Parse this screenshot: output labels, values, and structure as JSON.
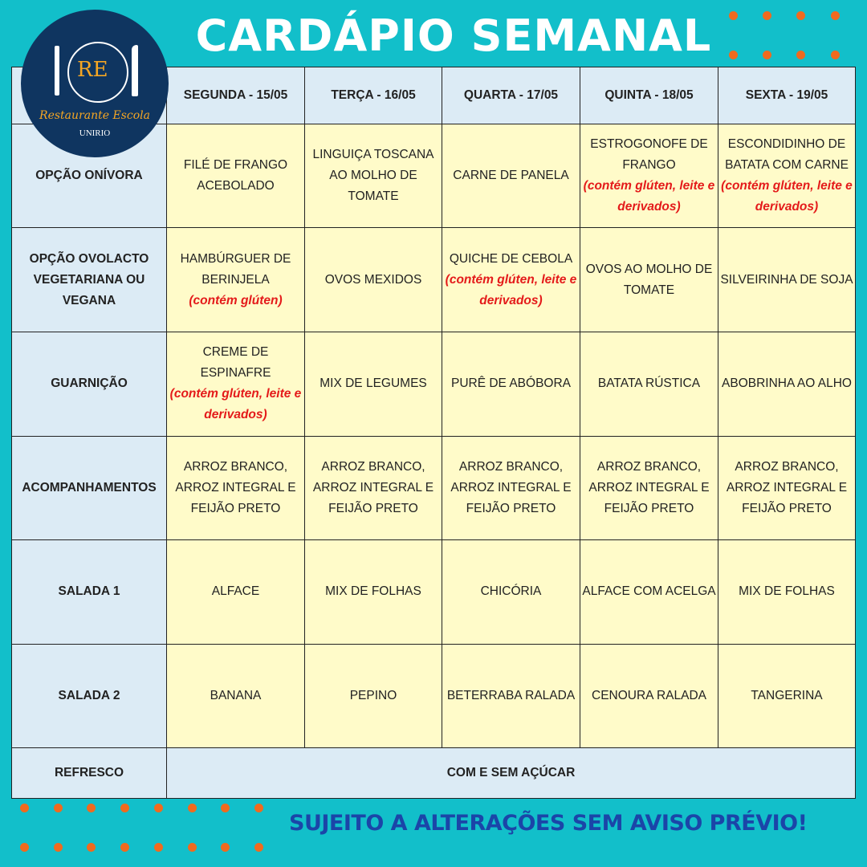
{
  "title": "CARDÁPIO SEMANAL",
  "logo": {
    "monogram": "RE",
    "name": "Restaurante Escola",
    "institution": "UNIRIO"
  },
  "colors": {
    "background": "#12bfca",
    "header_cell": "#dcebf5",
    "menu_cell": "#fffbc9",
    "dots": "#f06a1e",
    "allergen_note": "#e41a1a",
    "footer_text": "#1b45a8",
    "logo_bg": "#0f3560"
  },
  "days": [
    "SEGUNDA - 15/05",
    "TERÇA - 16/05",
    "QUARTA - 17/05",
    "QUINTA - 18/05",
    "SEXTA - 19/05"
  ],
  "rows": [
    {
      "label": "OPÇÃO ONÍVORA",
      "cells": [
        {
          "text": "FILÉ DE FRANGO ACEBOLADO",
          "note": ""
        },
        {
          "text": "LINGUIÇA TOSCANA AO MOLHO DE TOMATE",
          "note": ""
        },
        {
          "text": "CARNE DE PANELA",
          "note": ""
        },
        {
          "text": "ESTROGONOFE DE FRANGO",
          "note": "(contém glúten, leite e derivados)"
        },
        {
          "text": "ESCONDIDINHO DE BATATA COM CARNE",
          "note": "(contém glúten, leite e derivados)"
        }
      ]
    },
    {
      "label": "OPÇÃO OVOLACTO VEGETARIANA OU VEGANA",
      "cells": [
        {
          "text": "HAMBÚRGUER DE BERINJELA",
          "note": "(contém glúten)"
        },
        {
          "text": "OVOS MEXIDOS",
          "note": ""
        },
        {
          "text": "QUICHE DE CEBOLA",
          "note": "(contém glúten, leite e derivados)"
        },
        {
          "text": "OVOS AO MOLHO DE TOMATE",
          "note": ""
        },
        {
          "text": "SILVEIRINHA DE SOJA",
          "note": ""
        }
      ]
    },
    {
      "label": "GUARNIÇÃO",
      "cells": [
        {
          "text": "CREME DE ESPINAFRE",
          "note": "(contém glúten, leite e derivados)"
        },
        {
          "text": "MIX DE LEGUMES",
          "note": ""
        },
        {
          "text": "PURÊ DE ABÓBORA",
          "note": ""
        },
        {
          "text": "BATATA RÚSTICA",
          "note": ""
        },
        {
          "text": "ABOBRINHA AO ALHO",
          "note": ""
        }
      ]
    },
    {
      "label": "ACOMPANHAMENTOS",
      "cells": [
        {
          "text": "ARROZ BRANCO, ARROZ INTEGRAL E FEIJÃO PRETO",
          "note": ""
        },
        {
          "text": "ARROZ BRANCO, ARROZ INTEGRAL E FEIJÃO PRETO",
          "note": ""
        },
        {
          "text": "ARROZ BRANCO, ARROZ INTEGRAL E FEIJÃO PRETO",
          "note": ""
        },
        {
          "text": "ARROZ BRANCO, ARROZ INTEGRAL E FEIJÃO PRETO",
          "note": ""
        },
        {
          "text": "ARROZ BRANCO, ARROZ INTEGRAL E FEIJÃO PRETO",
          "note": ""
        }
      ]
    },
    {
      "label": "SALADA 1",
      "cells": [
        {
          "text": "ALFACE",
          "note": ""
        },
        {
          "text": "MIX DE FOLHAS",
          "note": ""
        },
        {
          "text": "CHICÓRIA",
          "note": ""
        },
        {
          "text": "ALFACE COM ACELGA",
          "note": ""
        },
        {
          "text": "MIX DE FOLHAS",
          "note": ""
        }
      ]
    },
    {
      "label": "SALADA 2",
      "cells": [
        {
          "text": "BANANA",
          "note": ""
        },
        {
          "text": "PEPINO",
          "note": ""
        },
        {
          "text": "BETERRABA RALADA",
          "note": ""
        },
        {
          "text": "CENOURA RALADA",
          "note": ""
        },
        {
          "text": "TANGERINA",
          "note": ""
        }
      ]
    }
  ],
  "refresco": {
    "label": "REFRESCO",
    "value": "COM E SEM AÇÚCAR"
  },
  "footer": "SUJEITO A ALTERAÇÕES SEM AVISO PRÉVIO!"
}
